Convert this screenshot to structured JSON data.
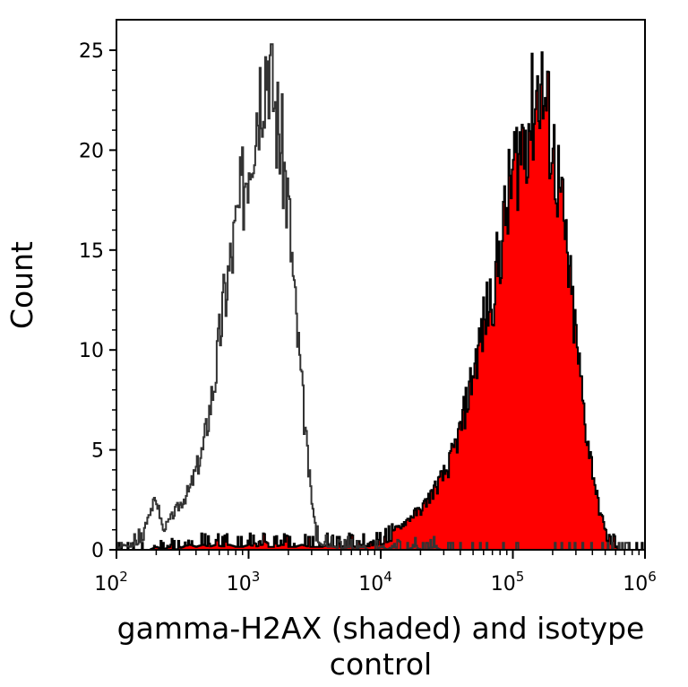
{
  "chart_data": {
    "type": "area",
    "title": "",
    "xlabel": "gamma-H2AX (shaded) and isotype control",
    "ylabel": "Count",
    "xscale": "log",
    "xlim": [
      100,
      1000000
    ],
    "ylim": [
      0,
      25.5
    ],
    "x_ticks": [
      {
        "base": "10",
        "exp": "2"
      },
      {
        "base": "10",
        "exp": "3"
      },
      {
        "base": "10",
        "exp": "4"
      },
      {
        "base": "10",
        "exp": "5"
      },
      {
        "base": "10",
        "exp": "6"
      }
    ],
    "y_ticks": [
      "0",
      "5",
      "10",
      "15",
      "20",
      "25"
    ],
    "grid": false,
    "log10_x": [
      2.0,
      2.05,
      2.1,
      2.15,
      2.2,
      2.25,
      2.3,
      2.35,
      2.4,
      2.45,
      2.5,
      2.55,
      2.6,
      2.65,
      2.7,
      2.75,
      2.8,
      2.85,
      2.9,
      2.95,
      3.0,
      3.05,
      3.1,
      3.15,
      3.2,
      3.25,
      3.3,
      3.35,
      3.4,
      3.45,
      3.5,
      3.55,
      3.6,
      3.65,
      3.7,
      3.75,
      3.8,
      3.85,
      3.9,
      3.95,
      4.0,
      4.05,
      4.1,
      4.15,
      4.2,
      4.25,
      4.3,
      4.35,
      4.4,
      4.45,
      4.5,
      4.55,
      4.6,
      4.65,
      4.7,
      4.75,
      4.8,
      4.85,
      4.9,
      4.95,
      5.0,
      5.05,
      5.1,
      5.15,
      5.2,
      5.25,
      5.3,
      5.35,
      5.4,
      5.45,
      5.5,
      5.55,
      5.6,
      5.65,
      5.7,
      5.75,
      5.8,
      5.85,
      5.9,
      5.95,
      6.0
    ],
    "series": [
      {
        "role": "isotype control",
        "style": "outline",
        "color": "#333333",
        "values": [
          0,
          0.5,
          0.3,
          0.5,
          1,
          2,
          2.5,
          1,
          1.5,
          2,
          2.5,
          3,
          4,
          5,
          7,
          9,
          12,
          14,
          16,
          18,
          20,
          22,
          24,
          25,
          22,
          20,
          17,
          12,
          8,
          4,
          1,
          0.5,
          0.3,
          0.3,
          0,
          0.3,
          0,
          0.3,
          0,
          0,
          0.3,
          0,
          0.3,
          0,
          0,
          0.3,
          0,
          0,
          0.3,
          0,
          0,
          0,
          0,
          0,
          0,
          0,
          0,
          0,
          0,
          0,
          0,
          0,
          0,
          0,
          0,
          0,
          0,
          0,
          0,
          0,
          0,
          0,
          0,
          0,
          0,
          0,
          0,
          0,
          0,
          0,
          0
        ]
      },
      {
        "role": "gamma-H2AX",
        "style": "shaded",
        "color": "#ff0000",
        "values": [
          0,
          0,
          0,
          0,
          0,
          0,
          0.3,
          0,
          0.3,
          0,
          0.3,
          0.5,
          0.3,
          0.5,
          0.3,
          0.5,
          0.3,
          0.5,
          0.3,
          0.3,
          0.5,
          0.3,
          0.5,
          0.3,
          0.3,
          0.5,
          0.3,
          0.3,
          0.5,
          0.3,
          0.3,
          0.3,
          0.5,
          0.3,
          0.3,
          0.5,
          0.3,
          0.5,
          0.3,
          0.5,
          0.5,
          0.8,
          1,
          1.2,
          1.5,
          1.8,
          2,
          2.5,
          3,
          3.5,
          4,
          5,
          6,
          7.5,
          9,
          10.5,
          12,
          13,
          15,
          17,
          19,
          20,
          21,
          22,
          23.5,
          22,
          20,
          18,
          15,
          12,
          9,
          6,
          4,
          2,
          1,
          0.5,
          0,
          0,
          0,
          0,
          0
        ]
      }
    ]
  }
}
